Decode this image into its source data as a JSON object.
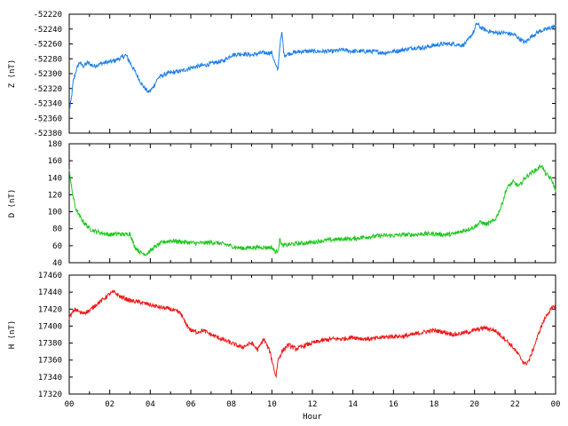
{
  "chart_data": [
    {
      "type": "line",
      "ylabel": "Z (nT)",
      "ylim": [
        -52380,
        -52220
      ],
      "yticks": [
        -52220,
        -52240,
        -52260,
        -52280,
        -52300,
        -52320,
        -52340,
        -52360,
        -52380
      ],
      "xlim": [
        0,
        24
      ],
      "series": [
        {
          "color": "#1e7fe6",
          "points": [
            [
              0,
              -52350
            ],
            [
              0.1,
              -52335
            ],
            [
              0.2,
              -52310
            ],
            [
              0.35,
              -52295
            ],
            [
              0.5,
              -52285
            ],
            [
              0.7,
              -52290
            ],
            [
              0.9,
              -52285
            ],
            [
              1.2,
              -52290
            ],
            [
              1.5,
              -52287
            ],
            [
              1.8,
              -52285
            ],
            [
              2.2,
              -52283
            ],
            [
              2.6,
              -52278
            ],
            [
              2.8,
              -52275
            ],
            [
              3.0,
              -52285
            ],
            [
              3.3,
              -52300
            ],
            [
              3.6,
              -52315
            ],
            [
              3.9,
              -52325
            ],
            [
              4.1,
              -52320
            ],
            [
              4.4,
              -52305
            ],
            [
              4.8,
              -52300
            ],
            [
              5.2,
              -52298
            ],
            [
              5.6,
              -52296
            ],
            [
              6.0,
              -52292
            ],
            [
              6.4,
              -52290
            ],
            [
              6.8,
              -52288
            ],
            [
              7.2,
              -52285
            ],
            [
              7.6,
              -52283
            ],
            [
              8.0,
              -52275
            ],
            [
              8.5,
              -52273
            ],
            [
              9.0,
              -52275
            ],
            [
              9.5,
              -52272
            ],
            [
              10.0,
              -52272
            ],
            [
              10.2,
              -52290
            ],
            [
              10.3,
              -52295
            ],
            [
              10.4,
              -52260
            ],
            [
              10.5,
              -52245
            ],
            [
              10.6,
              -52275
            ],
            [
              11.0,
              -52272
            ],
            [
              11.5,
              -52270
            ],
            [
              12.0,
              -52270
            ],
            [
              12.5,
              -52270
            ],
            [
              13.0,
              -52270
            ],
            [
              13.5,
              -52268
            ],
            [
              14.0,
              -52270
            ],
            [
              14.5,
              -52270
            ],
            [
              15.0,
              -52270
            ],
            [
              15.5,
              -52272
            ],
            [
              16.0,
              -52270
            ],
            [
              16.5,
              -52268
            ],
            [
              17.0,
              -52265
            ],
            [
              17.5,
              -52265
            ],
            [
              18.0,
              -52262
            ],
            [
              18.5,
              -52260
            ],
            [
              19.0,
              -52260
            ],
            [
              19.4,
              -52262
            ],
            [
              19.6,
              -52258
            ],
            [
              19.8,
              -52250
            ],
            [
              20.0,
              -52242
            ],
            [
              20.1,
              -52232
            ],
            [
              20.3,
              -52238
            ],
            [
              20.6,
              -52242
            ],
            [
              21.0,
              -52245
            ],
            [
              21.5,
              -52245
            ],
            [
              22.0,
              -52248
            ],
            [
              22.3,
              -52255
            ],
            [
              22.5,
              -52258
            ],
            [
              22.8,
              -52250
            ],
            [
              23.2,
              -52243
            ],
            [
              23.6,
              -52240
            ],
            [
              24.0,
              -52236
            ]
          ]
        }
      ]
    },
    {
      "type": "line",
      "ylabel": "D (nT)",
      "ylim": [
        40,
        180
      ],
      "yticks": [
        180,
        160,
        140,
        120,
        100,
        80,
        60,
        40
      ],
      "xlim": [
        0,
        24
      ],
      "series": [
        {
          "color": "#1ec81e",
          "points": [
            [
              0,
              152
            ],
            [
              0.1,
              130
            ],
            [
              0.3,
              105
            ],
            [
              0.5,
              95
            ],
            [
              0.7,
              88
            ],
            [
              1.0,
              80
            ],
            [
              1.3,
              77
            ],
            [
              1.6,
              75
            ],
            [
              2.0,
              73
            ],
            [
              2.4,
              74
            ],
            [
              2.8,
              73
            ],
            [
              3.0,
              75
            ],
            [
              3.2,
              60
            ],
            [
              3.5,
              52
            ],
            [
              3.8,
              50
            ],
            [
              4.2,
              58
            ],
            [
              4.6,
              64
            ],
            [
              5.0,
              66
            ],
            [
              5.4,
              65
            ],
            [
              5.8,
              64
            ],
            [
              6.2,
              63
            ],
            [
              6.6,
              63
            ],
            [
              7.0,
              64
            ],
            [
              7.4,
              63
            ],
            [
              7.8,
              61
            ],
            [
              8.2,
              58
            ],
            [
              8.6,
              57
            ],
            [
              9.0,
              58
            ],
            [
              9.5,
              58
            ],
            [
              10.0,
              58
            ],
            [
              10.2,
              52
            ],
            [
              10.3,
              55
            ],
            [
              10.4,
              68
            ],
            [
              10.5,
              60
            ],
            [
              11.0,
              62
            ],
            [
              11.5,
              63
            ],
            [
              12.0,
              64
            ],
            [
              12.5,
              66
            ],
            [
              13.0,
              67
            ],
            [
              13.5,
              68
            ],
            [
              14.0,
              68
            ],
            [
              14.5,
              70
            ],
            [
              15.0,
              71
            ],
            [
              15.5,
              72
            ],
            [
              16.0,
              72
            ],
            [
              16.5,
              73
            ],
            [
              17.0,
              73
            ],
            [
              17.5,
              74
            ],
            [
              18.0,
              74
            ],
            [
              18.5,
              73
            ],
            [
              19.0,
              74
            ],
            [
              19.5,
              78
            ],
            [
              20.0,
              82
            ],
            [
              20.3,
              88
            ],
            [
              20.6,
              85
            ],
            [
              21.0,
              90
            ],
            [
              21.3,
              105
            ],
            [
              21.6,
              128
            ],
            [
              21.9,
              135
            ],
            [
              22.2,
              130
            ],
            [
              22.5,
              140
            ],
            [
              22.8,
              146
            ],
            [
              23.1,
              150
            ],
            [
              23.3,
              155
            ],
            [
              23.5,
              145
            ],
            [
              23.8,
              138
            ],
            [
              24.0,
              125
            ]
          ]
        }
      ]
    },
    {
      "type": "line",
      "ylabel": "H (nT)",
      "ylim": [
        17320,
        17460
      ],
      "yticks": [
        17460,
        17440,
        17420,
        17400,
        17380,
        17360,
        17340,
        17320
      ],
      "xlim": [
        0,
        24
      ],
      "xticks": [
        "00",
        "02",
        "04",
        "06",
        "08",
        "10",
        "12",
        "14",
        "16",
        "18",
        "20",
        "22",
        "00"
      ],
      "xlabel": "Hour",
      "series": [
        {
          "color": "#ee1818",
          "points": [
            [
              0,
              17410
            ],
            [
              0.3,
              17420
            ],
            [
              0.6,
              17415
            ],
            [
              1.0,
              17418
            ],
            [
              1.3,
              17425
            ],
            [
              1.6,
              17430
            ],
            [
              2.0,
              17438
            ],
            [
              2.2,
              17440
            ],
            [
              2.5,
              17435
            ],
            [
              3.0,
              17430
            ],
            [
              3.5,
              17428
            ],
            [
              4.0,
              17425
            ],
            [
              4.5,
              17422
            ],
            [
              5.0,
              17420
            ],
            [
              5.5,
              17415
            ],
            [
              5.7,
              17405
            ],
            [
              6.0,
              17395
            ],
            [
              6.3,
              17393
            ],
            [
              6.6,
              17395
            ],
            [
              7.0,
              17390
            ],
            [
              7.5,
              17385
            ],
            [
              8.0,
              17380
            ],
            [
              8.5,
              17375
            ],
            [
              9.0,
              17380
            ],
            [
              9.3,
              17372
            ],
            [
              9.6,
              17385
            ],
            [
              9.9,
              17370
            ],
            [
              10.1,
              17350
            ],
            [
              10.2,
              17340
            ],
            [
              10.3,
              17360
            ],
            [
              10.5,
              17370
            ],
            [
              10.8,
              17378
            ],
            [
              11.2,
              17373
            ],
            [
              11.6,
              17377
            ],
            [
              12.0,
              17380
            ],
            [
              12.5,
              17383
            ],
            [
              13.0,
              17385
            ],
            [
              13.5,
              17385
            ],
            [
              14.0,
              17387
            ],
            [
              14.5,
              17385
            ],
            [
              15.0,
              17385
            ],
            [
              15.5,
              17387
            ],
            [
              16.0,
              17388
            ],
            [
              16.5,
              17388
            ],
            [
              17.0,
              17390
            ],
            [
              17.5,
              17393
            ],
            [
              18.0,
              17395
            ],
            [
              18.5,
              17393
            ],
            [
              19.0,
              17390
            ],
            [
              19.5,
              17392
            ],
            [
              20.0,
              17395
            ],
            [
              20.5,
              17398
            ],
            [
              21.0,
              17395
            ],
            [
              21.5,
              17385
            ],
            [
              21.9,
              17375
            ],
            [
              22.2,
              17365
            ],
            [
              22.5,
              17355
            ],
            [
              22.7,
              17360
            ],
            [
              23.0,
              17380
            ],
            [
              23.3,
              17400
            ],
            [
              23.6,
              17415
            ],
            [
              24.0,
              17425
            ]
          ]
        }
      ]
    }
  ]
}
